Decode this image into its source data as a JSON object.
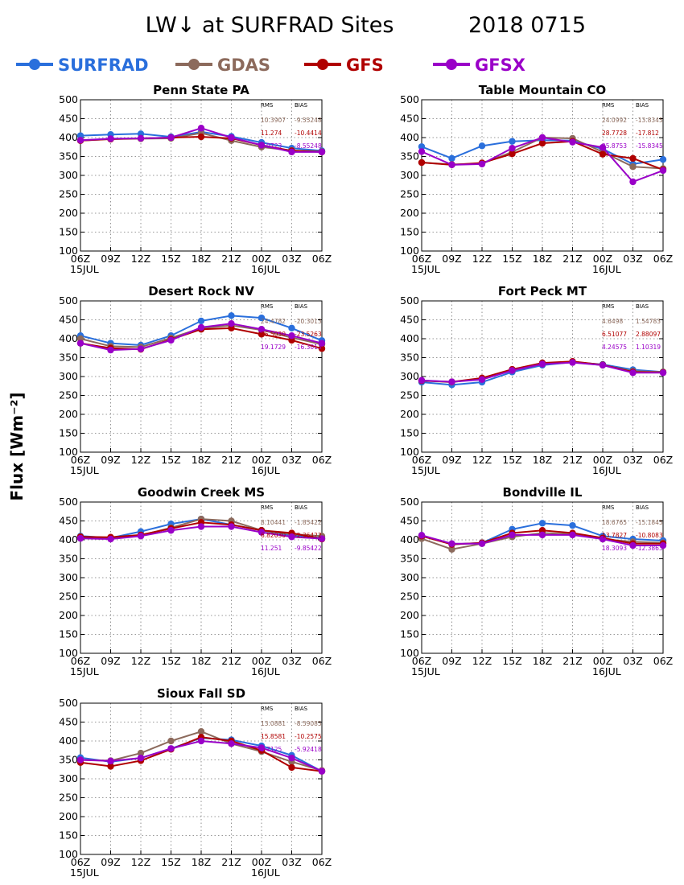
{
  "title": "LW↓ at SURFRAD Sites",
  "date": "2018 0715",
  "ylabel": "Flux [Wm⁻²]",
  "legend": [
    {
      "name": "SURFRAD",
      "color": "#2a6fdc"
    },
    {
      "name": "GDAS",
      "color": "#8c6a5c"
    },
    {
      "name": "GFS",
      "color": "#b00000"
    },
    {
      "name": "GFSX",
      "color": "#9a00c8"
    }
  ],
  "stats_header": {
    "rms": "RMS",
    "bias": "BIAS"
  },
  "chart_data": [
    {
      "type": "line",
      "title": "Penn State PA",
      "x": [
        "06Z",
        "09Z",
        "12Z",
        "15Z",
        "18Z",
        "21Z",
        "00Z",
        "03Z",
        "06Z"
      ],
      "date_labels": [
        {
          "index": 0,
          "text": "15JUL"
        },
        {
          "index": 6,
          "text": "16JUL"
        }
      ],
      "ylim": [
        100,
        500
      ],
      "yticks": [
        100,
        150,
        200,
        250,
        300,
        350,
        400,
        450,
        500
      ],
      "grid": true,
      "series": [
        {
          "name": "SURFRAD",
          "color": "#2a6fdc",
          "values": [
            405,
            408,
            410,
            402,
            415,
            403,
            387,
            372,
            365
          ]
        },
        {
          "name": "GDAS",
          "color": "#8c6a5c",
          "values": [
            392,
            396,
            397,
            398,
            412,
            392,
            375,
            366,
            363
          ]
        },
        {
          "name": "GFS",
          "color": "#b00000",
          "values": [
            392,
            396,
            398,
            400,
            402,
            398,
            380,
            365,
            362
          ]
        },
        {
          "name": "GFSX",
          "color": "#9a00c8",
          "values": [
            393,
            397,
            398,
            400,
            425,
            400,
            380,
            362,
            362
          ]
        }
      ],
      "stats": [
        {
          "series": "GDAS",
          "rms": "10.3907",
          "bias": "-9.55248"
        },
        {
          "series": "GFS",
          "rms": "11.274",
          "bias": "-10.4414"
        },
        {
          "series": "GFSX",
          "rms": "8.9723",
          "bias": "-8.55248"
        }
      ]
    },
    {
      "type": "line",
      "title": "Table Mountain CO",
      "x": [
        "06Z",
        "09Z",
        "12Z",
        "15Z",
        "18Z",
        "21Z",
        "00Z",
        "03Z",
        "06Z"
      ],
      "date_labels": [
        {
          "index": 0,
          "text": "15JUL"
        },
        {
          "index": 6,
          "text": "16JUL"
        }
      ],
      "ylim": [
        100,
        500
      ],
      "yticks": [
        100,
        150,
        200,
        250,
        300,
        350,
        400,
        450,
        500
      ],
      "grid": true,
      "series": [
        {
          "name": "SURFRAD",
          "color": "#2a6fdc",
          "values": [
            376,
            345,
            378,
            390,
            393,
            392,
            370,
            330,
            342
          ]
        },
        {
          "name": "GDAS",
          "color": "#8c6a5c",
          "values": [
            334,
            329,
            331,
            362,
            400,
            398,
            362,
            323,
            318
          ]
        },
        {
          "name": "GFS",
          "color": "#b00000",
          "values": [
            334,
            328,
            333,
            357,
            385,
            390,
            356,
            345,
            315
          ]
        },
        {
          "name": "GFSX",
          "color": "#9a00c8",
          "values": [
            363,
            328,
            330,
            372,
            400,
            388,
            374,
            283,
            313
          ]
        }
      ],
      "stats": [
        {
          "series": "GDAS",
          "rms": "24.0992",
          "bias": "-13.8345"
        },
        {
          "series": "GFS",
          "rms": "28.7728",
          "bias": "-17.812"
        },
        {
          "series": "GFSX",
          "rms": "25.8753",
          "bias": "-15.8345"
        }
      ]
    },
    {
      "type": "line",
      "title": "Desert Rock NV",
      "x": [
        "06Z",
        "09Z",
        "12Z",
        "15Z",
        "18Z",
        "21Z",
        "00Z",
        "03Z",
        "06Z"
      ],
      "date_labels": [
        {
          "index": 0,
          "text": "15JUL"
        },
        {
          "index": 6,
          "text": "16JUL"
        }
      ],
      "ylim": [
        100,
        500
      ],
      "yticks": [
        100,
        150,
        200,
        250,
        300,
        350,
        400,
        450,
        500
      ],
      "grid": true,
      "series": [
        {
          "name": "SURFRAD",
          "color": "#2a6fdc",
          "values": [
            408,
            388,
            383,
            408,
            447,
            461,
            455,
            428,
            395
          ]
        },
        {
          "name": "GDAS",
          "color": "#8c6a5c",
          "values": [
            400,
            380,
            378,
            402,
            428,
            435,
            423,
            403,
            385
          ]
        },
        {
          "name": "GFS",
          "color": "#b00000",
          "values": [
            388,
            375,
            372,
            398,
            425,
            428,
            412,
            396,
            374
          ]
        },
        {
          "name": "GFSX",
          "color": "#9a00c8",
          "values": [
            388,
            370,
            373,
            396,
            430,
            440,
            425,
            408,
            388
          ]
        }
      ],
      "stats": [
        {
          "series": "GDAS",
          "rms": "24.4782",
          "bias": "-20.3013"
        },
        {
          "series": "GFS",
          "rms": "26.5030",
          "bias": "-23.5263"
        },
        {
          "series": "GFSX",
          "rms": "19.1729",
          "bias": "-16.3013"
        }
      ]
    },
    {
      "type": "line",
      "title": "Fort Peck MT",
      "x": [
        "06Z",
        "09Z",
        "12Z",
        "15Z",
        "18Z",
        "21Z",
        "00Z",
        "03Z",
        "06Z"
      ],
      "date_labels": [
        {
          "index": 0,
          "text": "15JUL"
        },
        {
          "index": 6,
          "text": "16JUL"
        }
      ],
      "ylim": [
        100,
        500
      ],
      "yticks": [
        100,
        150,
        200,
        250,
        300,
        350,
        400,
        450,
        500
      ],
      "grid": true,
      "series": [
        {
          "name": "SURFRAD",
          "color": "#2a6fdc",
          "values": [
            285,
            278,
            285,
            312,
            330,
            338,
            332,
            318,
            312
          ]
        },
        {
          "name": "GDAS",
          "color": "#8c6a5c",
          "values": [
            289,
            285,
            295,
            316,
            333,
            338,
            330,
            314,
            312
          ]
        },
        {
          "name": "GFS",
          "color": "#b00000",
          "values": [
            289,
            286,
            296,
            319,
            336,
            340,
            331,
            312,
            311
          ]
        },
        {
          "name": "GFSX",
          "color": "#9a00c8",
          "values": [
            290,
            286,
            292,
            316,
            333,
            337,
            330,
            310,
            310
          ]
        }
      ],
      "stats": [
        {
          "series": "GDAS",
          "rms": "4.6498",
          "bias": "1.54783"
        },
        {
          "series": "GFS",
          "rms": "6.51077",
          "bias": "2.88097"
        },
        {
          "series": "GFSX",
          "rms": "4.24575",
          "bias": "1.10319"
        }
      ]
    },
    {
      "type": "line",
      "title": "Goodwin Creek MS",
      "x": [
        "06Z",
        "09Z",
        "12Z",
        "15Z",
        "18Z",
        "21Z",
        "00Z",
        "03Z",
        "06Z"
      ],
      "date_labels": [
        {
          "index": 0,
          "text": "15JUL"
        },
        {
          "index": 6,
          "text": "16JUL"
        }
      ],
      "ylim": [
        100,
        500
      ],
      "yticks": [
        100,
        150,
        200,
        250,
        300,
        350,
        400,
        450,
        500
      ],
      "grid": true,
      "series": [
        {
          "name": "SURFRAD",
          "color": "#2a6fdc",
          "values": [
            410,
            405,
            422,
            442,
            455,
            440,
            425,
            412,
            405
          ]
        },
        {
          "name": "GDAS",
          "color": "#8c6a5c",
          "values": [
            408,
            405,
            412,
            432,
            455,
            450,
            425,
            415,
            410
          ]
        },
        {
          "name": "GFS",
          "color": "#b00000",
          "values": [
            408,
            407,
            413,
            430,
            446,
            440,
            425,
            418,
            402
          ]
        },
        {
          "name": "GFSX",
          "color": "#9a00c8",
          "values": [
            404,
            402,
            410,
            425,
            435,
            435,
            420,
            408,
            403
          ]
        }
      ],
      "stats": [
        {
          "series": "GDAS",
          "rms": "8.10441",
          "bias": "-1.85422"
        },
        {
          "series": "GFS",
          "rms": "6.82030",
          "bias": "-2.36422"
        },
        {
          "series": "GFSX",
          "rms": "11.251",
          "bias": "-9.85422"
        }
      ]
    },
    {
      "type": "line",
      "title": "Bondville IL",
      "x": [
        "06Z",
        "09Z",
        "12Z",
        "15Z",
        "18Z",
        "21Z",
        "00Z",
        "03Z",
        "06Z"
      ],
      "date_labels": [
        {
          "index": 0,
          "text": "15JUL"
        },
        {
          "index": 6,
          "text": "16JUL"
        }
      ],
      "ylim": [
        100,
        500
      ],
      "yticks": [
        100,
        150,
        200,
        250,
        300,
        350,
        400,
        450,
        500
      ],
      "grid": true,
      "series": [
        {
          "name": "SURFRAD",
          "color": "#2a6fdc",
          "values": [
            412,
            388,
            392,
            428,
            444,
            438,
            410,
            402,
            398
          ]
        },
        {
          "name": "GDAS",
          "color": "#8c6a5c",
          "values": [
            403,
            375,
            390,
            408,
            418,
            415,
            402,
            395,
            392
          ]
        },
        {
          "name": "GFS",
          "color": "#b00000",
          "values": [
            410,
            388,
            392,
            418,
            425,
            418,
            405,
            390,
            390
          ]
        },
        {
          "name": "GFSX",
          "color": "#9a00c8",
          "values": [
            412,
            390,
            390,
            413,
            413,
            413,
            402,
            385,
            385
          ]
        }
      ],
      "stats": [
        {
          "series": "GDAS",
          "rms": "18.6765",
          "bias": "-15.1845"
        },
        {
          "series": "GFS",
          "rms": "13.7827",
          "bias": "-10.8083"
        },
        {
          "series": "GFSX",
          "rms": "18.3093",
          "bias": "-12.3863"
        }
      ]
    },
    {
      "type": "line",
      "title": "Sioux Fall SD",
      "x": [
        "06Z",
        "09Z",
        "12Z",
        "15Z",
        "18Z",
        "21Z",
        "00Z",
        "03Z",
        "06Z"
      ],
      "date_labels": [
        {
          "index": 0,
          "text": "15JUL"
        },
        {
          "index": 6,
          "text": "16JUL"
        }
      ],
      "ylim": [
        100,
        500
      ],
      "yticks": [
        100,
        150,
        200,
        250,
        300,
        350,
        400,
        450,
        500
      ],
      "grid": true,
      "series": [
        {
          "name": "SURFRAD",
          "color": "#2a6fdc",
          "values": [
            356,
            345,
            355,
            380,
            408,
            403,
            387,
            362,
            320
          ]
        },
        {
          "name": "GDAS",
          "color": "#8c6a5c",
          "values": [
            350,
            348,
            368,
            400,
            425,
            393,
            372,
            345,
            322
          ]
        },
        {
          "name": "GFS",
          "color": "#b00000",
          "values": [
            343,
            333,
            348,
            378,
            410,
            400,
            375,
            330,
            320
          ]
        },
        {
          "name": "GFSX",
          "color": "#9a00c8",
          "values": [
            350,
            347,
            355,
            380,
            400,
            393,
            382,
            355,
            320
          ]
        }
      ],
      "stats": [
        {
          "series": "GDAS",
          "rms": "13.0881",
          "bias": "-8.59085"
        },
        {
          "series": "GFS",
          "rms": "15.8581",
          "bias": "-10.2575"
        },
        {
          "series": "GFSX",
          "rms": "9.7125",
          "bias": "-5.92418"
        }
      ]
    }
  ]
}
